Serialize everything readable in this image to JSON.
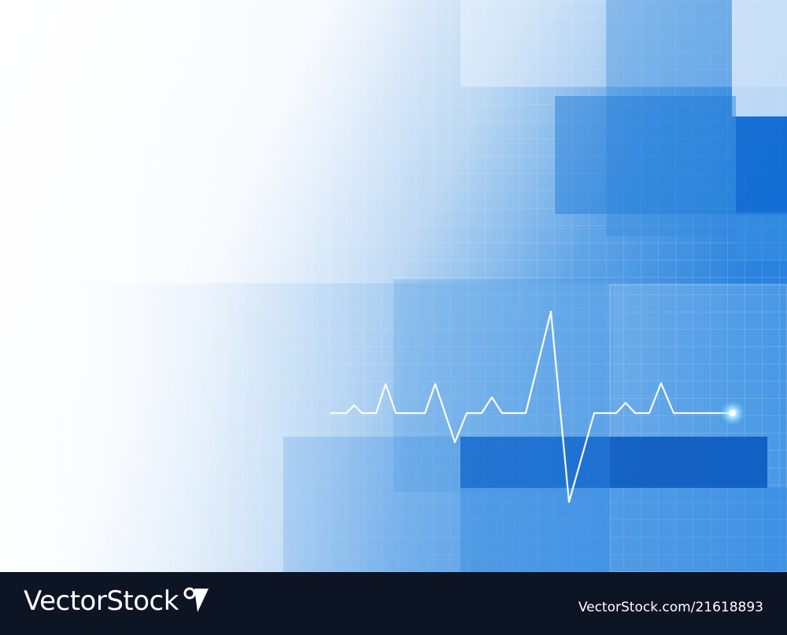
{
  "watermark": {
    "brand_name": "VectorStock",
    "brand_mark": "VectorStock registered-mark logo",
    "image_id": "VectorStock.com/21618893"
  },
  "artwork": {
    "subject": "blue medical background with heartbeat line",
    "colors": {
      "background_light": "#ffffff",
      "accent_blue": "#1a78d6",
      "deep_blue": "#0a5fc7",
      "footer": "#0d1424",
      "pulse_line": "#ffffff"
    }
  }
}
